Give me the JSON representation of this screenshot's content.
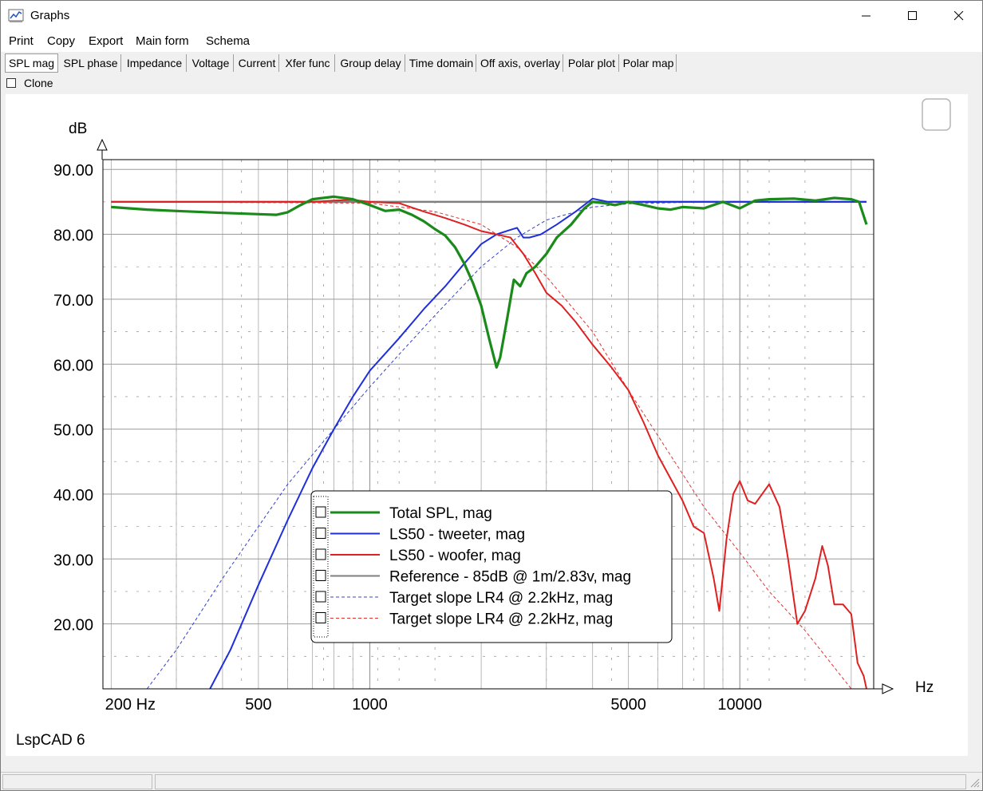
{
  "window": {
    "title": "Graphs",
    "app_icon": "graph-app-icon"
  },
  "menu": {
    "items": [
      "Print",
      "Copy",
      "Export",
      "Main form",
      "Schema"
    ]
  },
  "tabs": [
    "SPL mag",
    "SPL phase",
    "Impedance",
    "Voltage",
    "Current",
    "Xfer func",
    "Group delay",
    "Time domain",
    "Off axis, overlay",
    "Polar plot",
    "Polar map"
  ],
  "active_tab": "SPL mag",
  "clone": {
    "label": "Clone",
    "checked": false
  },
  "footer_label": "LspCAD 6",
  "chart_data": {
    "type": "line",
    "ylabel": "dB",
    "xlabel": "Hz",
    "x_scale": "log",
    "xlim": [
      190,
      23000
    ],
    "ylim": [
      10,
      91.5
    ],
    "y_ticks": [
      90,
      80,
      70,
      60,
      50,
      40,
      30,
      20
    ],
    "y_tick_labels": [
      "90.00",
      "80.00",
      "70.00",
      "60.00",
      "50.00",
      "40.00",
      "30.00",
      "20.00"
    ],
    "x_ticks": [
      200,
      500,
      1000,
      5000,
      10000
    ],
    "x_tick_labels": [
      "200 Hz",
      "500",
      "1000",
      "5000",
      "10000"
    ],
    "grid": true,
    "legend_position": "bottom-center",
    "series": [
      {
        "name": "Total SPL, mag",
        "color": "#1a8a1a",
        "style": "solid",
        "width": 3.2,
        "points": [
          [
            200,
            84.2
          ],
          [
            250,
            83.8
          ],
          [
            300,
            83.6
          ],
          [
            400,
            83.3
          ],
          [
            500,
            83.1
          ],
          [
            560,
            83
          ],
          [
            600,
            83.4
          ],
          [
            650,
            84.5
          ],
          [
            700,
            85.4
          ],
          [
            800,
            85.8
          ],
          [
            900,
            85.4
          ],
          [
            1000,
            84.5
          ],
          [
            1100,
            83.6
          ],
          [
            1200,
            83.8
          ],
          [
            1300,
            83
          ],
          [
            1400,
            82
          ],
          [
            1500,
            80.8
          ],
          [
            1600,
            79.8
          ],
          [
            1700,
            78
          ],
          [
            1800,
            75.5
          ],
          [
            1900,
            72.5
          ],
          [
            2000,
            69
          ],
          [
            2100,
            64
          ],
          [
            2200,
            59.5
          ],
          [
            2250,
            61
          ],
          [
            2350,
            67
          ],
          [
            2450,
            73
          ],
          [
            2550,
            72
          ],
          [
            2650,
            74
          ],
          [
            2800,
            75
          ],
          [
            3000,
            77
          ],
          [
            3200,
            79.5
          ],
          [
            3500,
            81.5
          ],
          [
            3800,
            84
          ],
          [
            4000,
            85
          ],
          [
            4300,
            84.8
          ],
          [
            4600,
            84.5
          ],
          [
            5000,
            85
          ],
          [
            5500,
            84.5
          ],
          [
            6000,
            84
          ],
          [
            6500,
            83.8
          ],
          [
            7000,
            84.2
          ],
          [
            8000,
            84
          ],
          [
            9000,
            85
          ],
          [
            10000,
            84
          ],
          [
            11000,
            85.2
          ],
          [
            12000,
            85.4
          ],
          [
            14000,
            85.5
          ],
          [
            16000,
            85.2
          ],
          [
            18000,
            85.6
          ],
          [
            20000,
            85.4
          ],
          [
            21000,
            85
          ],
          [
            22000,
            81.5
          ]
        ]
      },
      {
        "name": "LS50 - tweeter, mag",
        "color": "#1f2fdb",
        "style": "solid",
        "width": 2,
        "points": [
          [
            370,
            10
          ],
          [
            420,
            16
          ],
          [
            500,
            26
          ],
          [
            600,
            36
          ],
          [
            700,
            44
          ],
          [
            800,
            50
          ],
          [
            900,
            55
          ],
          [
            1000,
            59
          ],
          [
            1200,
            64
          ],
          [
            1400,
            68.5
          ],
          [
            1600,
            72
          ],
          [
            1800,
            75.5
          ],
          [
            2000,
            78.5
          ],
          [
            2200,
            80
          ],
          [
            2400,
            80.7
          ],
          [
            2500,
            81
          ],
          [
            2600,
            79.5
          ],
          [
            2700,
            79.5
          ],
          [
            2900,
            80
          ],
          [
            3200,
            81.5
          ],
          [
            3600,
            83.5
          ],
          [
            4000,
            85.5
          ],
          [
            4400,
            85
          ],
          [
            5000,
            85
          ],
          [
            6000,
            85
          ],
          [
            8000,
            85
          ],
          [
            10000,
            85
          ],
          [
            15000,
            85
          ],
          [
            20000,
            85
          ],
          [
            22000,
            85
          ]
        ]
      },
      {
        "name": "LS50 - woofer, mag",
        "color": "#e02020",
        "style": "solid",
        "width": 2,
        "points": [
          [
            200,
            85
          ],
          [
            500,
            85
          ],
          [
            700,
            85
          ],
          [
            800,
            85.2
          ],
          [
            900,
            85.3
          ],
          [
            1000,
            85
          ],
          [
            1200,
            84.8
          ],
          [
            1400,
            83.5
          ],
          [
            1600,
            82.5
          ],
          [
            1800,
            81.5
          ],
          [
            2000,
            80.5
          ],
          [
            2200,
            80
          ],
          [
            2400,
            79.5
          ],
          [
            2600,
            77
          ],
          [
            2800,
            74
          ],
          [
            3000,
            71
          ],
          [
            3300,
            69
          ],
          [
            3600,
            66.5
          ],
          [
            4000,
            63
          ],
          [
            4500,
            59.5
          ],
          [
            5000,
            56
          ],
          [
            5500,
            51
          ],
          [
            6000,
            46
          ],
          [
            7000,
            39
          ],
          [
            7500,
            35
          ],
          [
            8000,
            34
          ],
          [
            8500,
            27
          ],
          [
            8800,
            22
          ],
          [
            9200,
            33
          ],
          [
            9600,
            40
          ],
          [
            10000,
            42
          ],
          [
            10500,
            39
          ],
          [
            11000,
            38.5
          ],
          [
            12000,
            41.5
          ],
          [
            12800,
            38
          ],
          [
            13500,
            30
          ],
          [
            14300,
            20
          ],
          [
            15000,
            22
          ],
          [
            16000,
            27
          ],
          [
            16700,
            32
          ],
          [
            17300,
            29
          ],
          [
            18000,
            23
          ],
          [
            19000,
            23
          ],
          [
            20000,
            21.5
          ],
          [
            20800,
            14
          ],
          [
            21600,
            12
          ],
          [
            22000,
            10
          ]
        ]
      },
      {
        "name": "Reference - 85dB @ 1m/2.83v, mag",
        "color": "#7f7f7f",
        "style": "solid",
        "width": 2.5,
        "points": [
          [
            200,
            85
          ],
          [
            22000,
            85
          ]
        ]
      },
      {
        "name": "Target slope LR4 @ 2.2kHz, mag",
        "color": "#3344cc",
        "style": "dashed",
        "width": 1,
        "points": [
          [
            250,
            10
          ],
          [
            300,
            16
          ],
          [
            400,
            27
          ],
          [
            500,
            35
          ],
          [
            600,
            41.5
          ],
          [
            800,
            50
          ],
          [
            1000,
            56.5
          ],
          [
            1200,
            61.5
          ],
          [
            1500,
            67.5
          ],
          [
            2000,
            75
          ],
          [
            2500,
            79.5
          ],
          [
            3000,
            82.2
          ],
          [
            4000,
            84.2
          ],
          [
            5000,
            84.7
          ],
          [
            8000,
            85
          ],
          [
            22000,
            85
          ]
        ]
      },
      {
        "name": "Target slope LR4 @ 2.2kHz, mag",
        "color": "#e03030",
        "style": "dashed",
        "width": 1,
        "points": [
          [
            200,
            85
          ],
          [
            1000,
            84.8
          ],
          [
            1500,
            83.5
          ],
          [
            2000,
            81.5
          ],
          [
            2500,
            78
          ],
          [
            3000,
            73.5
          ],
          [
            4000,
            65
          ],
          [
            5000,
            56
          ],
          [
            6000,
            49
          ],
          [
            8000,
            38
          ],
          [
            10000,
            31
          ],
          [
            12000,
            25
          ],
          [
            15000,
            19
          ],
          [
            20000,
            10
          ]
        ]
      }
    ]
  }
}
